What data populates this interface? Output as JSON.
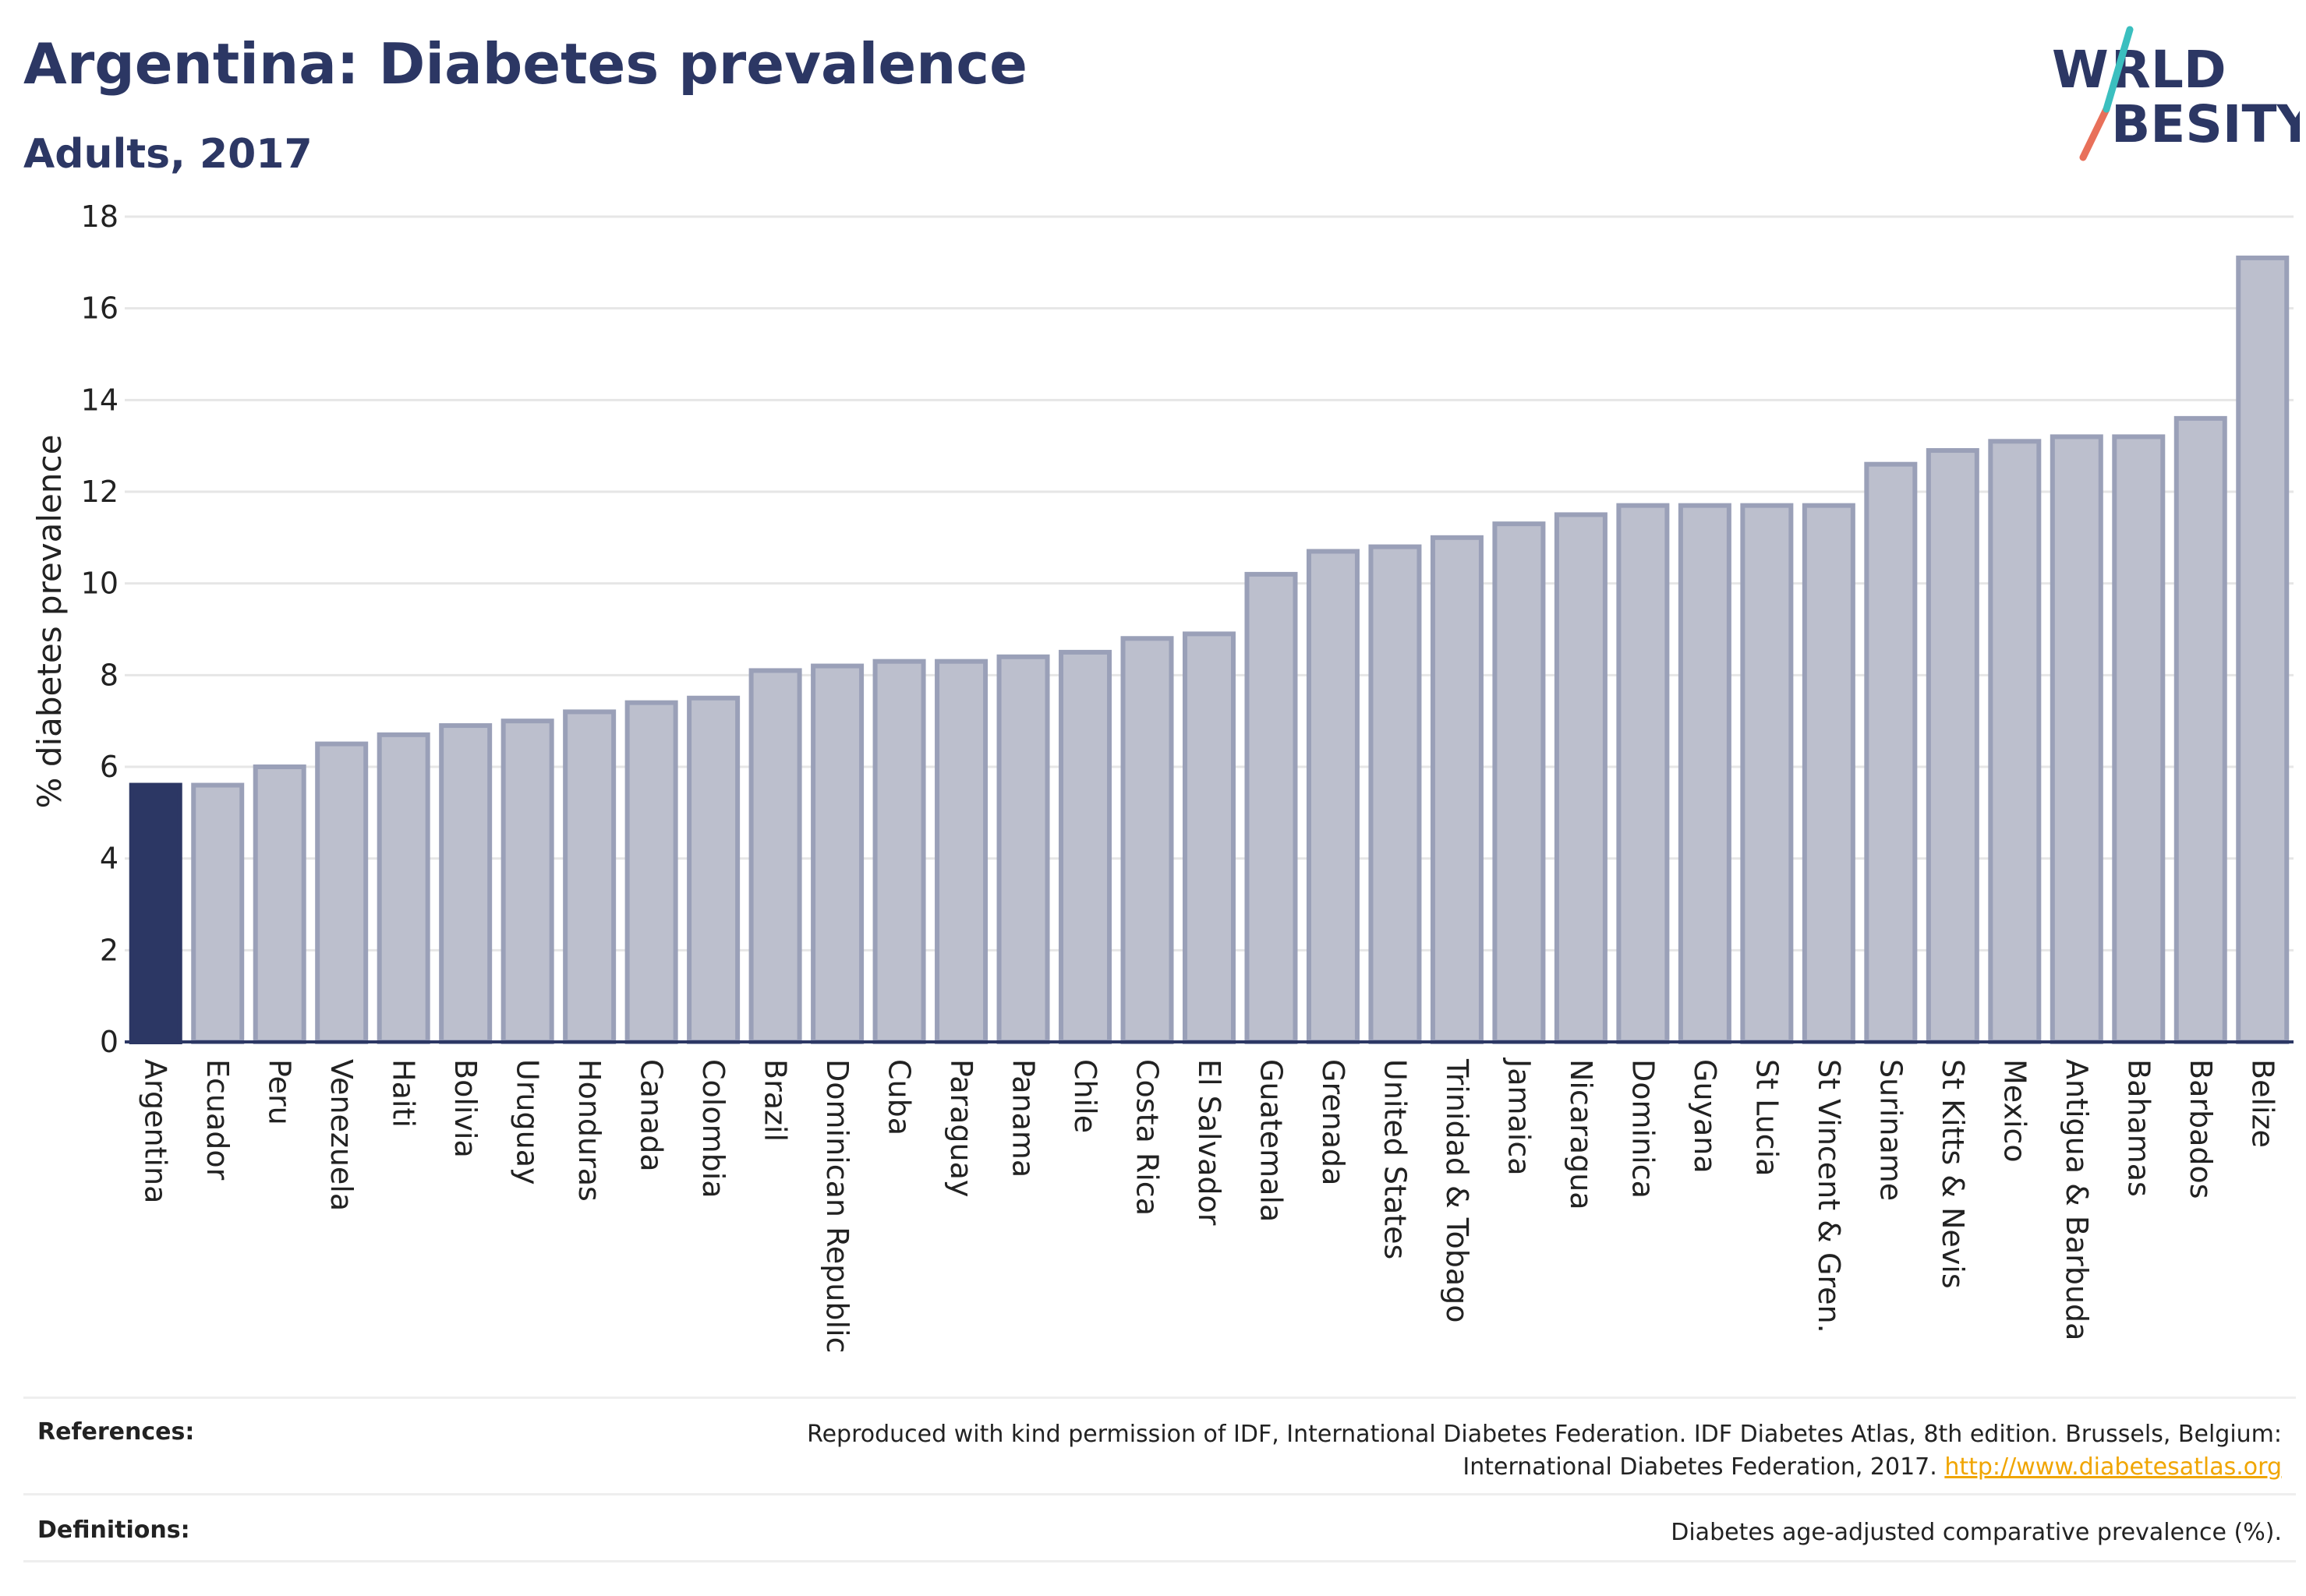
{
  "header": {
    "title": "Argentina: Diabetes prevalence",
    "subtitle": "Adults, 2017"
  },
  "logo": {
    "line1": "W",
    "line1b": "RLD",
    "line2": "BESITY",
    "name": "World Obesity logo",
    "colors": {
      "text": "#2c3764",
      "slash_top": "#3bbfbf",
      "slash_bottom": "#e8705a"
    }
  },
  "chart_data": {
    "type": "bar",
    "title": "Argentina: Diabetes prevalence",
    "subtitle": "Adults, 2017",
    "xlabel": "",
    "ylabel": "% diabetes prevalence",
    "ylim": [
      0,
      18
    ],
    "yticks": [
      0,
      2,
      4,
      6,
      8,
      10,
      12,
      14,
      16,
      18
    ],
    "grid": true,
    "highlight": "Argentina",
    "colors": {
      "highlight": "#2c3764",
      "bar": "#bcbfcd",
      "bar_border": "#9aa0b8"
    },
    "categories": [
      "Argentina",
      "Ecuador",
      "Peru",
      "Venezuela",
      "Haiti",
      "Bolivia",
      "Uruguay",
      "Honduras",
      "Canada",
      "Colombia",
      "Brazil",
      "Dominican Republic",
      "Cuba",
      "Paraguay",
      "Panama",
      "Chile",
      "Costa Rica",
      "El Salvador",
      "Guatemala",
      "Grenada",
      "United States",
      "Trinidad & Tobago",
      "Jamaica",
      "Nicaragua",
      "Dominica",
      "Guyana",
      "St Lucia",
      "St Vincent & Gren.",
      "Suriname",
      "St Kitts & Nevis",
      "Mexico",
      "Antigua & Barbuda",
      "Bahamas",
      "Barbados",
      "Belize"
    ],
    "values": [
      5.6,
      5.6,
      6.0,
      6.5,
      6.7,
      6.9,
      7.0,
      7.2,
      7.4,
      7.5,
      8.1,
      8.2,
      8.3,
      8.3,
      8.4,
      8.5,
      8.8,
      8.9,
      10.2,
      10.7,
      10.8,
      11.0,
      11.3,
      11.5,
      11.7,
      11.7,
      11.7,
      11.7,
      12.6,
      12.9,
      13.1,
      13.2,
      13.2,
      13.6,
      17.1
    ]
  },
  "footer": {
    "references_label": "References:",
    "references_line1": "Reproduced with kind permission of IDF, International Diabetes Federation. IDF Diabetes Atlas, 8th edition. Brussels, Belgium:",
    "references_line2": "International Diabetes Federation, 2017. ",
    "references_link": "http://www.diabetesatlas.org",
    "definitions_label": "Definitions:",
    "definitions_text": "Diabetes age-adjusted comparative prevalence (%)."
  }
}
